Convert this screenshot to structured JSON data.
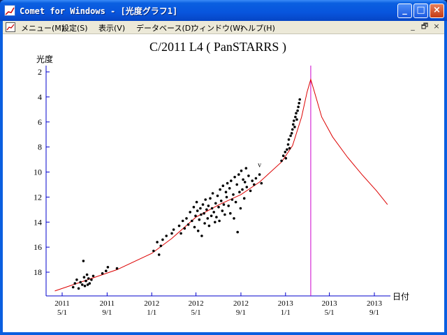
{
  "window": {
    "title": "Comet for Windows - [光度グラフ1]",
    "minimize_glyph": "_",
    "maximize_glyph": "□",
    "close_glyph": "×"
  },
  "menu": {
    "items": [
      "メニュー(M)",
      "設定(S)",
      "表示(V)",
      "データベース(D)",
      "ウィンドウ(W)",
      "ヘルプ(H)"
    ],
    "mdi_controls": [
      "_",
      "🗗",
      "×"
    ]
  },
  "chart_data": {
    "type": "scatter",
    "title": "C/2011 L4 ( PanSTARRS )",
    "ylabel": "光度",
    "xlabel": "日付",
    "ylim": [
      19.8,
      1.5
    ],
    "y_inverted": true,
    "y_ticks": [
      2,
      4,
      6,
      8,
      10,
      12,
      14,
      16,
      18
    ],
    "x_ticks": [
      {
        "year": "2011",
        "date": "5/1"
      },
      {
        "year": "2011",
        "date": "9/1"
      },
      {
        "year": "2012",
        "date": "1/1"
      },
      {
        "year": "2012",
        "date": "5/1"
      },
      {
        "year": "2012",
        "date": "9/1"
      },
      {
        "year": "2013",
        "date": "1/1"
      },
      {
        "year": "2013",
        "date": "5/1"
      },
      {
        "year": "2013",
        "date": "9/1"
      }
    ],
    "x_range_days": [
      -20,
      520
    ],
    "tick_days": [
      0,
      123,
      245,
      366,
      489,
      611,
      731,
      854
    ],
    "perihelion_day": 680,
    "annotation": "v",
    "annotation_point": [
      540,
      9.6
    ],
    "model_curve": [
      [
        -20,
        19.5
      ],
      [
        60,
        18.7
      ],
      [
        150,
        17.8
      ],
      [
        245,
        16.5
      ],
      [
        300,
        15.3
      ],
      [
        366,
        13.6
      ],
      [
        430,
        12.6
      ],
      [
        489,
        11.8
      ],
      [
        540,
        10.8
      ],
      [
        600,
        9.2
      ],
      [
        630,
        7.9
      ],
      [
        655,
        5.6
      ],
      [
        670,
        3.6
      ],
      [
        680,
        2.6
      ],
      [
        690,
        3.6
      ],
      [
        710,
        5.6
      ],
      [
        740,
        7.2
      ],
      [
        780,
        8.8
      ],
      [
        820,
        10.2
      ],
      [
        860,
        11.5
      ],
      [
        890,
        12.6
      ]
    ],
    "observations": [
      [
        30,
        19.2
      ],
      [
        35,
        18.9
      ],
      [
        40,
        18.6
      ],
      [
        45,
        19.3
      ],
      [
        50,
        18.8
      ],
      [
        55,
        19.0
      ],
      [
        58,
        17.1
      ],
      [
        60,
        18.4
      ],
      [
        62,
        19.1
      ],
      [
        65,
        18.7
      ],
      [
        68,
        18.2
      ],
      [
        70,
        19.0
      ],
      [
        72,
        18.5
      ],
      [
        75,
        18.9
      ],
      [
        80,
        18.6
      ],
      [
        85,
        18.3
      ],
      [
        110,
        18.1
      ],
      [
        120,
        17.9
      ],
      [
        125,
        17.6
      ],
      [
        150,
        17.7
      ],
      [
        250,
        16.3
      ],
      [
        260,
        15.6
      ],
      [
        265,
        16.6
      ],
      [
        270,
        15.9
      ],
      [
        275,
        15.4
      ],
      [
        285,
        15.1
      ],
      [
        300,
        14.9
      ],
      [
        305,
        14.6
      ],
      [
        320,
        14.3
      ],
      [
        325,
        14.9
      ],
      [
        330,
        13.9
      ],
      [
        335,
        14.5
      ],
      [
        340,
        13.7
      ],
      [
        345,
        14.2
      ],
      [
        350,
        13.2
      ],
      [
        355,
        13.9
      ],
      [
        360,
        12.8
      ],
      [
        362,
        14.4
      ],
      [
        365,
        13.5
      ],
      [
        368,
        12.4
      ],
      [
        370,
        13.1
      ],
      [
        372,
        14.7
      ],
      [
        375,
        13.8
      ],
      [
        378,
        12.9
      ],
      [
        380,
        13.4
      ],
      [
        382,
        15.1
      ],
      [
        385,
        12.6
      ],
      [
        388,
        13.3
      ],
      [
        390,
        14.1
      ],
      [
        392,
        12.2
      ],
      [
        395,
        13.0
      ],
      [
        398,
        13.7
      ],
      [
        400,
        12.7
      ],
      [
        402,
        14.3
      ],
      [
        405,
        12.1
      ],
      [
        408,
        13.5
      ],
      [
        410,
        12.9
      ],
      [
        412,
        11.7
      ],
      [
        415,
        13.2
      ],
      [
        418,
        14.0
      ],
      [
        420,
        12.5
      ],
      [
        422,
        13.6
      ],
      [
        425,
        11.9
      ],
      [
        428,
        12.8
      ],
      [
        430,
        13.9
      ],
      [
        432,
        11.4
      ],
      [
        435,
        12.3
      ],
      [
        438,
        13.1
      ],
      [
        440,
        11.1
      ],
      [
        442,
        12.6
      ],
      [
        445,
        13.4
      ],
      [
        448,
        11.6
      ],
      [
        450,
        12.0
      ],
      [
        452,
        10.9
      ],
      [
        455,
        12.7
      ],
      [
        458,
        11.3
      ],
      [
        460,
        13.3
      ],
      [
        462,
        10.7
      ],
      [
        465,
        12.2
      ],
      [
        468,
        11.8
      ],
      [
        470,
        13.7
      ],
      [
        472,
        10.4
      ],
      [
        475,
        12.4
      ],
      [
        478,
        11.0
      ],
      [
        480,
        14.8
      ],
      [
        483,
        10.2
      ],
      [
        485,
        11.6
      ],
      [
        488,
        12.9
      ],
      [
        490,
        9.9
      ],
      [
        493,
        11.4
      ],
      [
        495,
        10.6
      ],
      [
        498,
        12.1
      ],
      [
        500,
        10.8
      ],
      [
        503,
        9.7
      ],
      [
        505,
        11.2
      ],
      [
        510,
        10.3
      ],
      [
        515,
        11.5
      ],
      [
        520,
        10.7
      ],
      [
        525,
        11.0
      ],
      [
        530,
        10.5
      ],
      [
        540,
        10.2
      ],
      [
        545,
        10.9
      ],
      [
        600,
        9.1
      ],
      [
        605,
        8.7
      ],
      [
        610,
        8.4
      ],
      [
        612,
        8.9
      ],
      [
        615,
        8.2
      ],
      [
        618,
        7.8
      ],
      [
        620,
        7.4
      ],
      [
        622,
        8.1
      ],
      [
        625,
        7.1
      ],
      [
        628,
        6.9
      ],
      [
        630,
        6.6
      ],
      [
        632,
        6.2
      ],
      [
        634,
        5.9
      ],
      [
        636,
        6.4
      ],
      [
        638,
        5.6
      ],
      [
        640,
        5.3
      ],
      [
        642,
        5.8
      ],
      [
        644,
        5.1
      ],
      [
        646,
        4.8
      ],
      [
        648,
        4.5
      ],
      [
        650,
        4.2
      ]
    ]
  }
}
